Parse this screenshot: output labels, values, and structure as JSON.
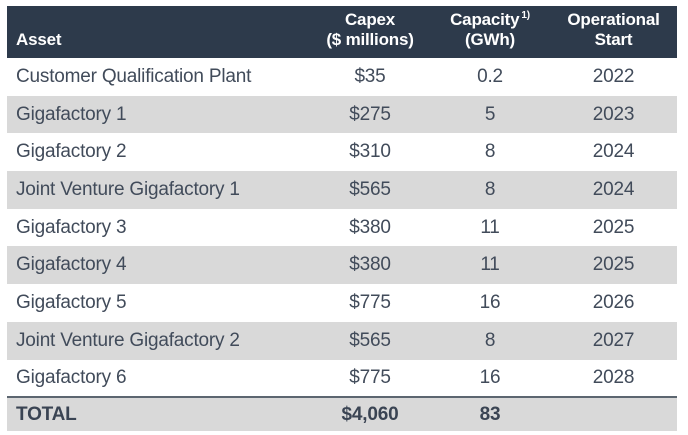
{
  "chart_data": {
    "type": "table",
    "columns": [
      "Asset",
      "Capex ($ millions)",
      "Capacity (GWh)",
      "Operational Start"
    ],
    "footnote_marker_on_capacity": "1)",
    "rows": [
      [
        "Customer Qualification Plant",
        35,
        0.2,
        2022
      ],
      [
        "Gigafactory 1",
        275,
        5,
        2023
      ],
      [
        "Gigafactory 2",
        310,
        8,
        2024
      ],
      [
        "Joint Venture Gigafactory 1",
        565,
        8,
        2024
      ],
      [
        "Gigafactory 3",
        380,
        11,
        2025
      ],
      [
        "Gigafactory 4",
        380,
        11,
        2025
      ],
      [
        "Gigafactory 5",
        775,
        16,
        2026
      ],
      [
        "Joint Venture Gigafactory 2",
        565,
        8,
        2027
      ],
      [
        "Gigafactory 6",
        775,
        16,
        2028
      ]
    ],
    "total_row": [
      "TOTAL",
      4060,
      83,
      null
    ]
  },
  "table": {
    "header": {
      "asset": "Asset",
      "capex_line1": "Capex",
      "capex_line2": "($ millions)",
      "capacity_line1": "Capacity",
      "capacity_sup": "1)",
      "capacity_line2": "(GWh)",
      "start_line1": "Operational",
      "start_line2": "Start"
    },
    "rows": [
      {
        "asset": "Customer Qualification Plant",
        "capex": "$35",
        "capacity": "0.2",
        "start": "2022"
      },
      {
        "asset": "Gigafactory 1",
        "capex": "$275",
        "capacity": "5",
        "start": "2023"
      },
      {
        "asset": "Gigafactory 2",
        "capex": "$310",
        "capacity": "8",
        "start": "2024"
      },
      {
        "asset": "Joint Venture Gigafactory 1",
        "capex": "$565",
        "capacity": "8",
        "start": "2024"
      },
      {
        "asset": "Gigafactory 3",
        "capex": "$380",
        "capacity": "11",
        "start": "2025"
      },
      {
        "asset": "Gigafactory 4",
        "capex": "$380",
        "capacity": "11",
        "start": "2025"
      },
      {
        "asset": "Gigafactory 5",
        "capex": "$775",
        "capacity": "16",
        "start": "2026"
      },
      {
        "asset": "Joint Venture Gigafactory 2",
        "capex": "$565",
        "capacity": "8",
        "start": "2027"
      },
      {
        "asset": "Gigafactory 6",
        "capex": "$775",
        "capacity": "16",
        "start": "2028"
      }
    ],
    "total": {
      "asset": "TOTAL",
      "capex": "$4,060",
      "capacity": "83",
      "start": ""
    }
  },
  "colors": {
    "header_bg": "#2d3a4b",
    "header_text": "#ffffff",
    "row_bg": "#ffffff",
    "row_alt_bg": "#d9d9d9",
    "body_text": "#414b5a",
    "total_bg": "#d9d9d9",
    "total_rule": "#5c6670"
  }
}
